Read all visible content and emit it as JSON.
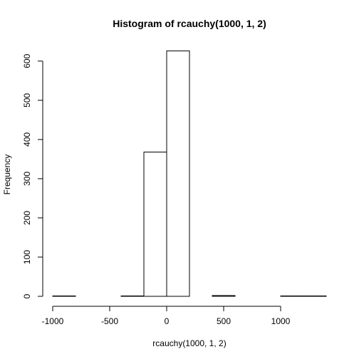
{
  "chart_data": {
    "type": "histogram",
    "title": "Histogram of rcauchy(1000, 1, 2)",
    "xlabel": "rcauchy(1000, 1, 2)",
    "ylabel": "Frequency",
    "xlim": [
      -1000,
      1400
    ],
    "ylim": [
      0,
      625
    ],
    "x_ticks": [
      -1000,
      -500,
      0,
      500,
      1000
    ],
    "y_ticks": [
      0,
      100,
      200,
      300,
      400,
      500,
      600
    ],
    "bins": [
      {
        "x0": -1000,
        "x1": -800,
        "count": 1
      },
      {
        "x0": -800,
        "x1": -600,
        "count": 0
      },
      {
        "x0": -600,
        "x1": -400,
        "count": 0
      },
      {
        "x0": -400,
        "x1": -200,
        "count": 1
      },
      {
        "x0": -200,
        "x1": 0,
        "count": 368
      },
      {
        "x0": 0,
        "x1": 200,
        "count": 626
      },
      {
        "x0": 200,
        "x1": 400,
        "count": 0
      },
      {
        "x0": 400,
        "x1": 600,
        "count": 2
      },
      {
        "x0": 600,
        "x1": 800,
        "count": 0
      },
      {
        "x0": 800,
        "x1": 1000,
        "count": 0
      },
      {
        "x0": 1000,
        "x1": 1200,
        "count": 1
      },
      {
        "x0": 1200,
        "x1": 1400,
        "count": 1
      }
    ]
  }
}
